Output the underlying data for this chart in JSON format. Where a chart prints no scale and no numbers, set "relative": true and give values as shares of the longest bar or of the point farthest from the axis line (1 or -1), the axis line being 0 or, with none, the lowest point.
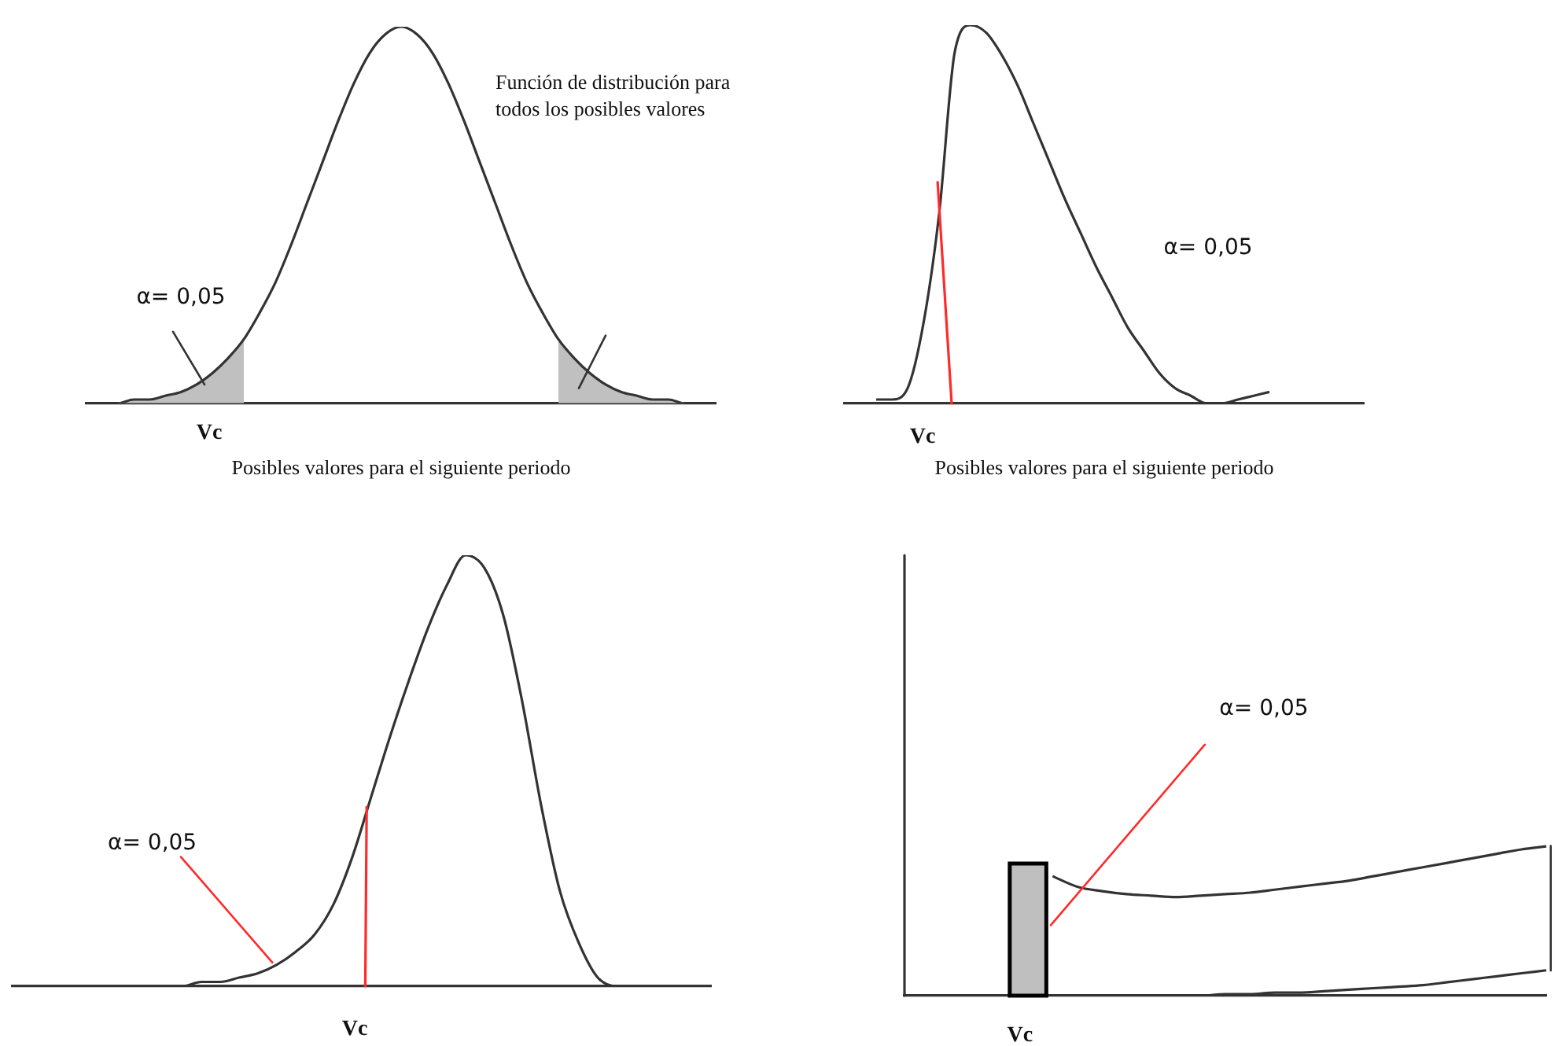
{
  "chart_data": [
    {
      "type": "line",
      "relative": true,
      "tick_labels": false,
      "xlabel": "Posibles valores para el siguiente periodo",
      "categories": [
        null,
        null,
        null,
        null,
        null,
        null,
        null,
        null,
        null,
        null,
        null,
        null,
        null,
        null,
        null,
        null,
        null,
        null,
        null,
        null,
        null,
        null,
        null,
        null,
        null,
        null,
        null,
        null,
        null,
        null,
        null,
        null,
        null,
        null,
        null,
        null,
        null,
        null,
        null,
        null,
        null
      ],
      "series": [
        {
          "color": "#333333",
          "values": [
            0,
            0,
            0,
            0.01,
            0.01,
            0.02,
            0.03,
            0.05,
            0.08,
            0.12,
            0.17,
            0.24,
            0.32,
            0.42,
            0.53,
            0.64,
            0.75,
            0.85,
            0.93,
            0.98,
            1,
            0.98,
            0.93,
            0.85,
            0.75,
            0.64,
            0.53,
            0.42,
            0.32,
            0.24,
            0.17,
            0.12,
            0.08,
            0.05,
            0.03,
            0.02,
            0.01,
            0.01,
            0,
            0,
            0
          ]
        },
        {
          "type": "area",
          "color": "#c0c0c0",
          "values": [
            null,
            null,
            0,
            0.01,
            0.01,
            0.02,
            0.03,
            0.05,
            0.08,
            0.12,
            0.17,
            null,
            null,
            null,
            null,
            null,
            null,
            null,
            null,
            null,
            null,
            null,
            null,
            null,
            null,
            null,
            null,
            null,
            null,
            null,
            null,
            null,
            null,
            null,
            null,
            null,
            null,
            null,
            null,
            null,
            null
          ]
        },
        {
          "type": "area",
          "color": "#c0c0c0",
          "values": [
            null,
            null,
            null,
            null,
            null,
            null,
            null,
            null,
            null,
            null,
            null,
            null,
            null,
            null,
            null,
            null,
            null,
            null,
            null,
            null,
            null,
            null,
            null,
            null,
            null,
            null,
            null,
            null,
            null,
            null,
            0.17,
            0.12,
            0.08,
            0.05,
            0.03,
            0.02,
            0.01,
            0.01,
            0,
            null,
            null
          ]
        }
      ],
      "annotations": [
        "Función de distribución para todos los posibles valores",
        "α= 0,05",
        "Vc"
      ]
    },
    {
      "type": "line",
      "relative": true,
      "tick_labels": false,
      "xlabel": "Posibles valores para el siguiente periodo",
      "categories": [
        null,
        null,
        null,
        null,
        null,
        null,
        null,
        null,
        null,
        null,
        null,
        null,
        null,
        null,
        null,
        null,
        null,
        null,
        null,
        null,
        null,
        null,
        null,
        null,
        null,
        null,
        null,
        null,
        null,
        null,
        null,
        null,
        null,
        null
      ],
      "series": [
        {
          "color": "#333333",
          "values": [
            null,
            null,
            0.01,
            0.01,
            0.04,
            0.21,
            0.5,
            0.93,
            1,
            0.98,
            0.92,
            0.84,
            0.74,
            0.64,
            0.54,
            0.45,
            0.36,
            0.28,
            0.2,
            0.14,
            0.08,
            0.04,
            0.02,
            0,
            0,
            0.01,
            0.02,
            0.03,
            null,
            null,
            null,
            null,
            null,
            null
          ]
        }
      ],
      "annotations": [
        "α= 0,05",
        "Vc"
      ]
    },
    {
      "type": "line",
      "relative": true,
      "tick_labels": false,
      "categories": [
        null,
        null,
        null,
        null,
        null,
        null,
        null,
        null,
        null,
        null,
        null,
        null,
        null,
        null,
        null,
        null,
        null,
        null,
        null,
        null,
        null,
        null,
        null,
        null,
        null,
        null,
        null,
        null,
        null,
        null,
        null,
        null,
        null,
        null,
        null,
        null,
        null,
        null
      ],
      "series": [
        {
          "color": "#333333",
          "values": [
            0,
            0,
            0,
            0,
            0,
            0,
            0,
            0,
            0,
            0,
            0.01,
            0.01,
            0.02,
            0.03,
            0.05,
            0.08,
            0.12,
            0.19,
            0.3,
            0.44,
            0.58,
            0.71,
            0.83,
            0.93,
            1,
            0.97,
            0.86,
            0.66,
            0.42,
            0.22,
            0.1,
            0.02,
            0,
            0,
            0,
            0,
            0,
            0
          ]
        }
      ],
      "annotations": [
        "α= 0,05",
        "Vc"
      ]
    },
    {
      "type": "line",
      "relative": true,
      "tick_labels": false,
      "categories": [
        null,
        null,
        null,
        null,
        null,
        null,
        null,
        null,
        null,
        null,
        null,
        null,
        null,
        null,
        null,
        null,
        null,
        null,
        null,
        null,
        null,
        null,
        null,
        null,
        null,
        null,
        null
      ],
      "series": [
        {
          "color": "#333333",
          "values": [
            null,
            null,
            null,
            null,
            null,
            null,
            0.8,
            0.73,
            0.7,
            0.68,
            0.67,
            0.66,
            0.67,
            0.68,
            0.69,
            0.71,
            0.73,
            0.75,
            0.77,
            0.8,
            0.83,
            0.86,
            0.89,
            0.92,
            0.95,
            0.98,
            1
          ]
        },
        {
          "color": "#333333",
          "values": [
            0,
            0,
            0,
            0,
            0,
            0,
            0,
            0,
            0,
            0,
            0,
            0,
            0,
            0.01,
            0.01,
            0.02,
            0.02,
            0.03,
            0.04,
            0.05,
            0.06,
            0.07,
            0.09,
            0.11,
            0.13,
            0.15,
            0.17
          ]
        }
      ],
      "annotations": [
        "α= 0,05",
        "Vc"
      ]
    }
  ]
}
